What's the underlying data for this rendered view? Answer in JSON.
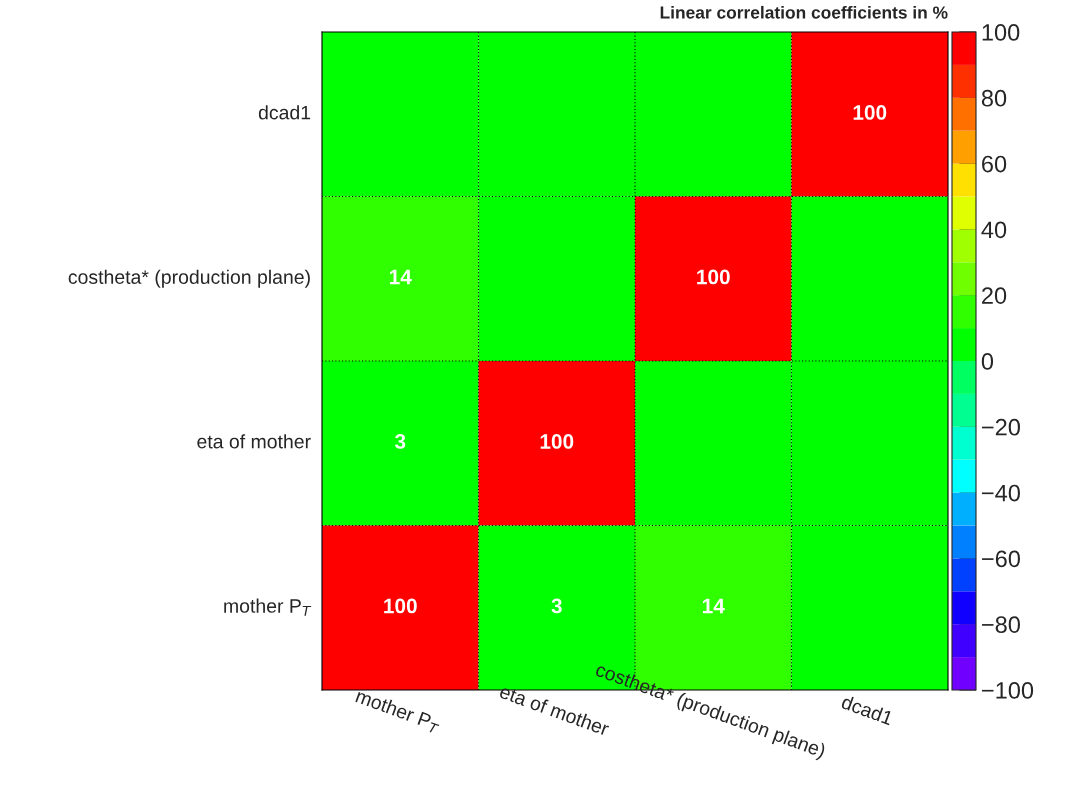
{
  "chart_data": {
    "type": "heatmap",
    "title": "Linear correlation coefficients in %",
    "categories": [
      "mother P$_{T}$",
      "eta of mother",
      "costheta* (production plane)",
      "dcad1"
    ],
    "y_categories": [
      "dcad1",
      "costheta* (production plane)",
      "eta of mother",
      "mother P$_{T}$"
    ],
    "cells": [
      [
        0,
        0,
        0,
        100
      ],
      [
        14,
        0,
        100,
        0
      ],
      [
        3,
        100,
        0,
        0
      ],
      [
        100,
        3,
        14,
        0
      ]
    ],
    "cell_labels": [
      [
        null,
        null,
        null,
        "100"
      ],
      [
        "14",
        null,
        "100",
        null
      ],
      [
        "3",
        "100",
        null,
        null
      ],
      [
        "100",
        "3",
        "14",
        null
      ]
    ],
    "clim": [
      -100,
      100
    ],
    "cticks": [
      {
        "value": -100,
        "label": "−100"
      },
      {
        "value": -80,
        "label": "−80"
      },
      {
        "value": -60,
        "label": "−60"
      },
      {
        "value": -40,
        "label": "−40"
      },
      {
        "value": -20,
        "label": "−20"
      },
      0,
      20,
      40,
      60,
      80,
      100
    ],
    "grid": true
  }
}
